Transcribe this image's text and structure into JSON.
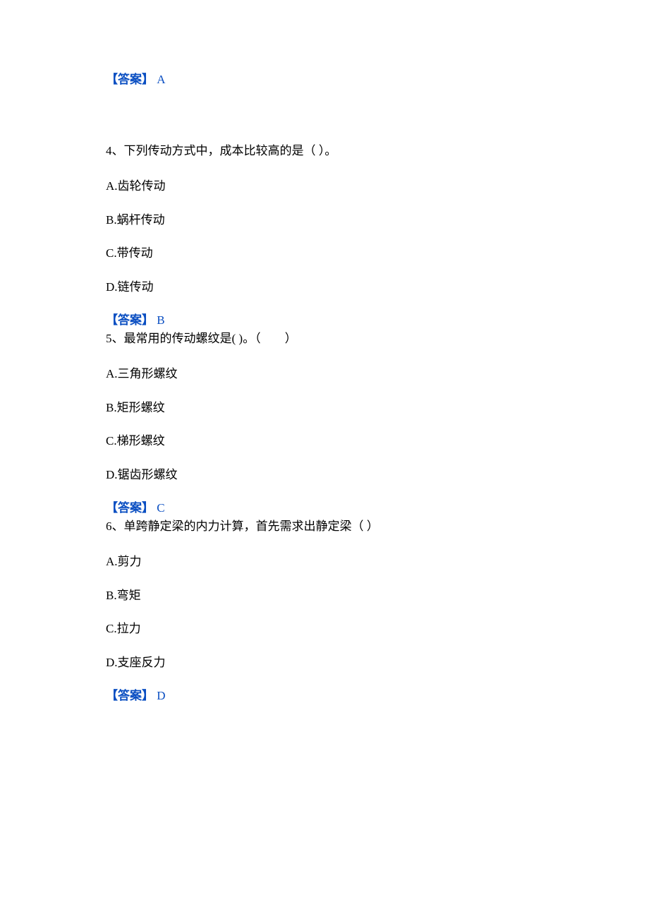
{
  "answer_label": "【答案】",
  "answers": {
    "prev": "A",
    "q4": "B",
    "q5": "C",
    "q6": "D"
  },
  "questions": {
    "q4": {
      "text": "4、下列传动方式中，成本比较高的是（ ）。",
      "options": {
        "a": "A.齿轮传动",
        "b": "B.蜗杆传动",
        "c": "C.带传动",
        "d": "D.链传动"
      }
    },
    "q5": {
      "text": "5、最常用的传动螺纹是( )。（　　）",
      "options": {
        "a": "A.三角形螺纹",
        "b": "B.矩形螺纹",
        "c": "C.梯形螺纹",
        "d": "D.锯齿形螺纹"
      }
    },
    "q6": {
      "text": "6、单跨静定梁的内力计算，首先需求出静定梁（ ）",
      "options": {
        "a": "A.剪力",
        "b": "B.弯矩",
        "c": "C.拉力",
        "d": "D.支座反力"
      }
    }
  },
  "colors": {
    "answer": "#0b4fc2",
    "text": "#000000",
    "background": "#ffffff"
  }
}
